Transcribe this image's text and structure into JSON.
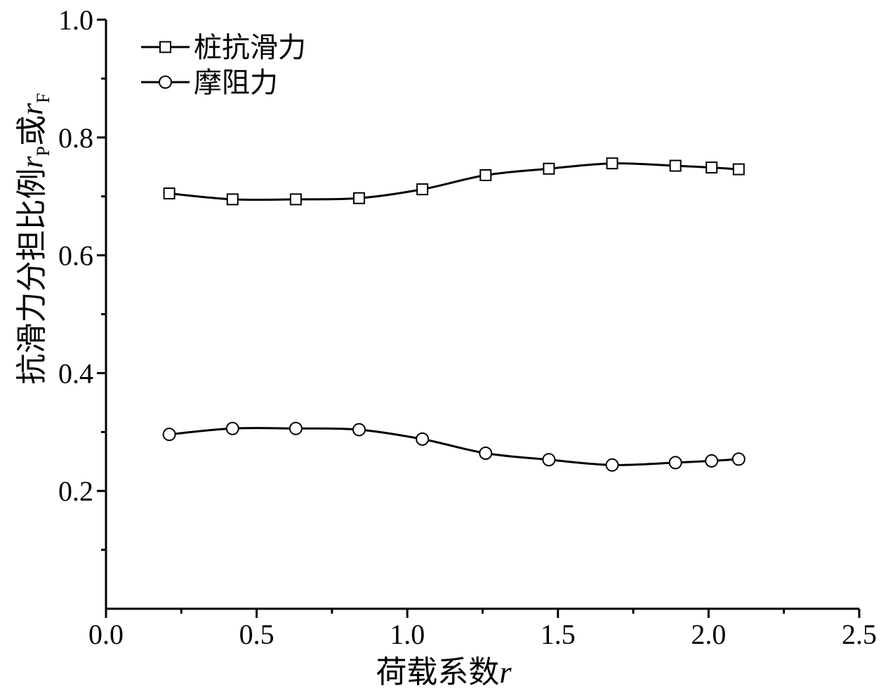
{
  "chart_data": {
    "type": "line",
    "xlabel": {
      "main": "荷载系数",
      "var": "r"
    },
    "ylabel": {
      "main": "抗滑力分担比例",
      "var1": "r",
      "sub1": "P",
      "mid": "或",
      "var2": "r",
      "sub2": "F"
    },
    "xlim": [
      0.0,
      2.5
    ],
    "ylim": [
      0.0,
      1.0
    ],
    "xticks": [
      "0.0",
      "0.5",
      "1.0",
      "1.5",
      "2.0",
      "2.5"
    ],
    "yticks": [
      "0.2",
      "0.4",
      "0.6",
      "0.8",
      "1.0"
    ],
    "grid": false,
    "legend_position": "top-left",
    "series": [
      {
        "name": "桩抗滑力",
        "marker": "square",
        "x": [
          0.21,
          0.42,
          0.63,
          0.84,
          1.05,
          1.26,
          1.47,
          1.68,
          1.89,
          2.01,
          2.1
        ],
        "y": [
          0.705,
          0.695,
          0.695,
          0.697,
          0.712,
          0.736,
          0.747,
          0.756,
          0.752,
          0.749,
          0.746
        ]
      },
      {
        "name": "摩阻力",
        "marker": "circle",
        "x": [
          0.21,
          0.42,
          0.63,
          0.84,
          1.05,
          1.26,
          1.47,
          1.68,
          1.89,
          2.01,
          2.1
        ],
        "y": [
          0.296,
          0.306,
          0.306,
          0.304,
          0.288,
          0.264,
          0.253,
          0.244,
          0.248,
          0.251,
          0.254
        ]
      }
    ]
  }
}
